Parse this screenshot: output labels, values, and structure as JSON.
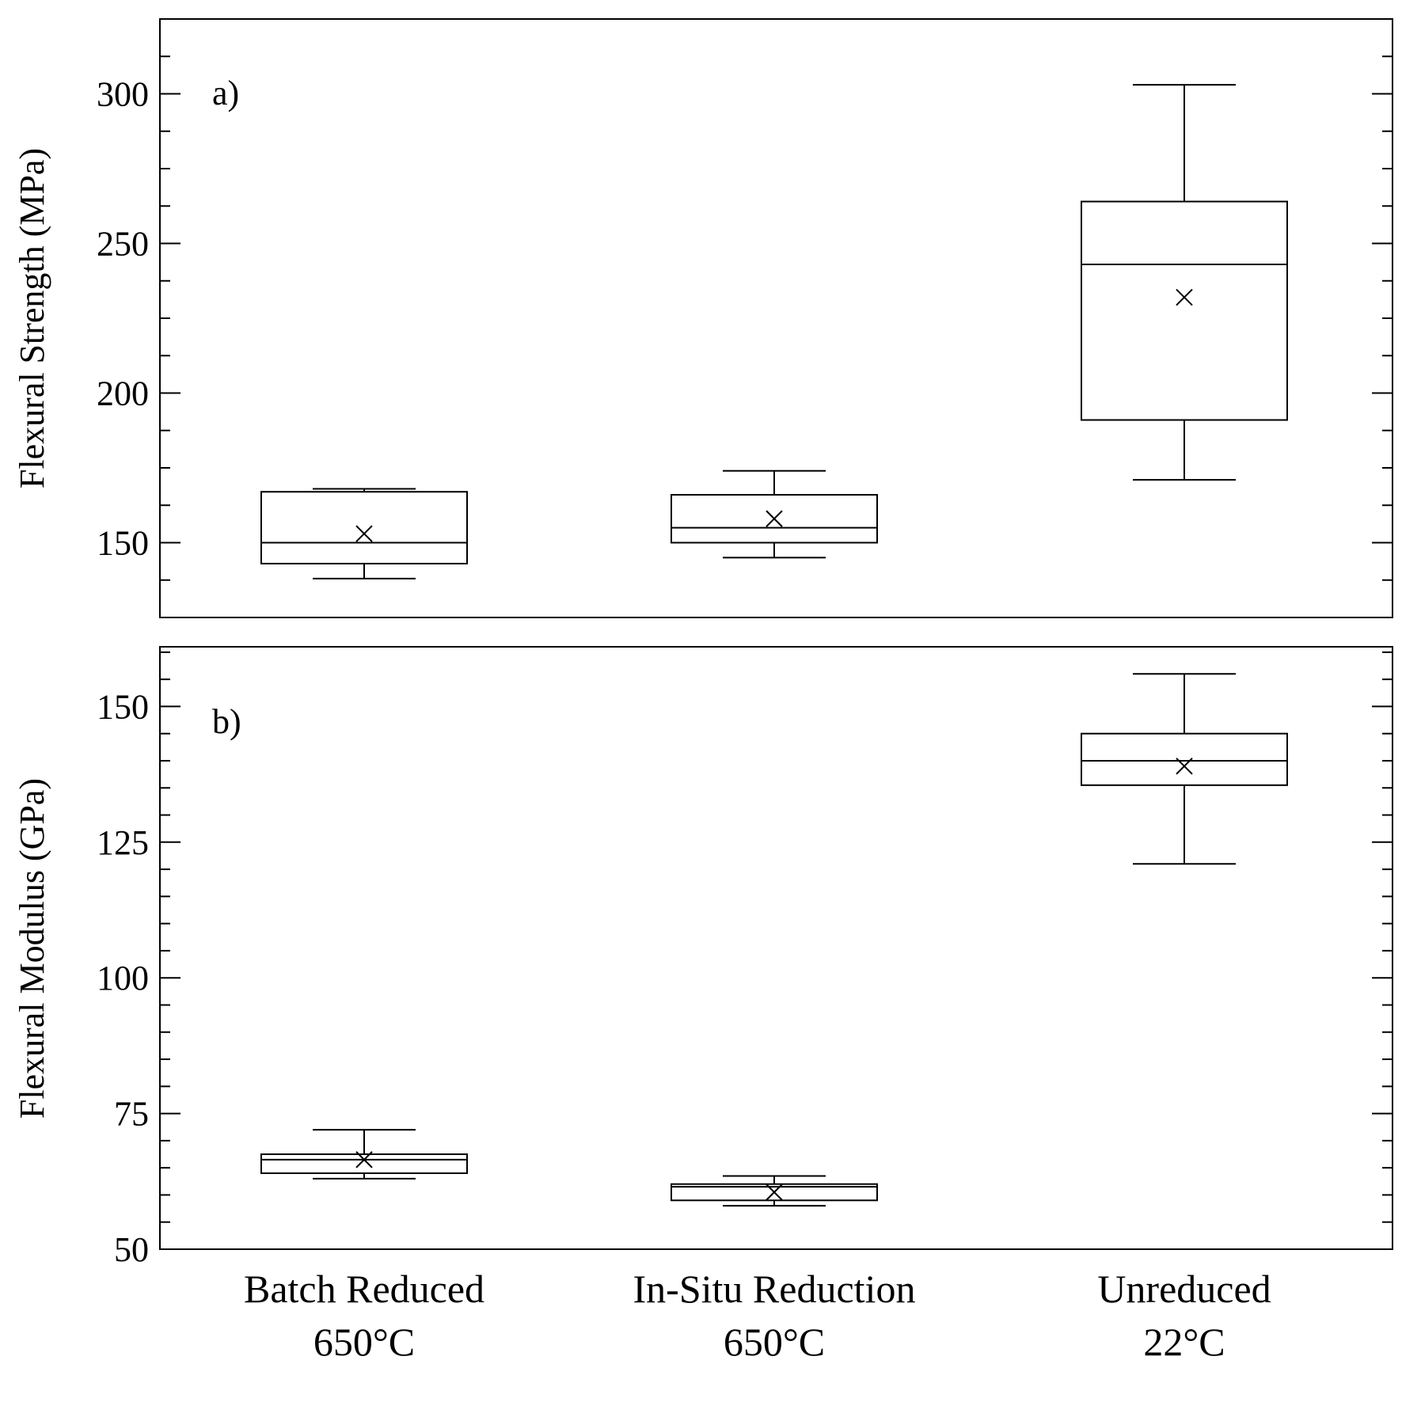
{
  "chart_data": [
    {
      "type": "box",
      "panel_label": "a)",
      "ylabel": "Flexural Strength (MPa)",
      "ylim": [
        125,
        325
      ],
      "yticks": [
        150,
        200,
        250,
        300
      ],
      "minor_tick_step": 12.5,
      "categories": [
        "Batch Reduced 650°C",
        "In-Situ Reduction 650°C",
        "Unreduced 22°C"
      ],
      "boxes": [
        {
          "category": "Batch Reduced 650°C",
          "min": 138,
          "q1": 143,
          "median": 150,
          "q3": 167,
          "max": 168,
          "mean": 153
        },
        {
          "category": "In-Situ Reduction 650°C",
          "min": 145,
          "q1": 150,
          "median": 155,
          "q3": 166,
          "max": 174,
          "mean": 158
        },
        {
          "category": "Unreduced 22°C",
          "min": 171,
          "q1": 191,
          "median": 243,
          "q3": 264,
          "max": 303,
          "mean": 232
        }
      ]
    },
    {
      "type": "box",
      "panel_label": "b)",
      "ylabel": "Flexural Modulus (GPa)",
      "ylim": [
        50,
        161
      ],
      "yticks": [
        50,
        75,
        100,
        125,
        150
      ],
      "minor_tick_step": 5,
      "categories": [
        "Batch Reduced 650°C",
        "In-Situ Reduction 650°C",
        "Unreduced 22°C"
      ],
      "boxes": [
        {
          "category": "Batch Reduced 650°C",
          "min": 63,
          "q1": 64,
          "median": 66.5,
          "q3": 67.5,
          "max": 72,
          "mean": 66.5
        },
        {
          "category": "In-Situ Reduction 650°C",
          "min": 58,
          "q1": 59,
          "median": 61.5,
          "q3": 62,
          "max": 63.5,
          "mean": 60.5
        },
        {
          "category": "Unreduced 22°C",
          "min": 121,
          "q1": 135.5,
          "median": 140,
          "q3": 145,
          "max": 156,
          "mean": 139
        }
      ]
    }
  ],
  "xaxis": {
    "category_labels": [
      {
        "line1": "Batch Reduced",
        "line2": "650°C"
      },
      {
        "line1": "In-Situ Reduction",
        "line2": "650°C"
      },
      {
        "line1": "Unreduced",
        "line2": "22°C"
      }
    ]
  }
}
